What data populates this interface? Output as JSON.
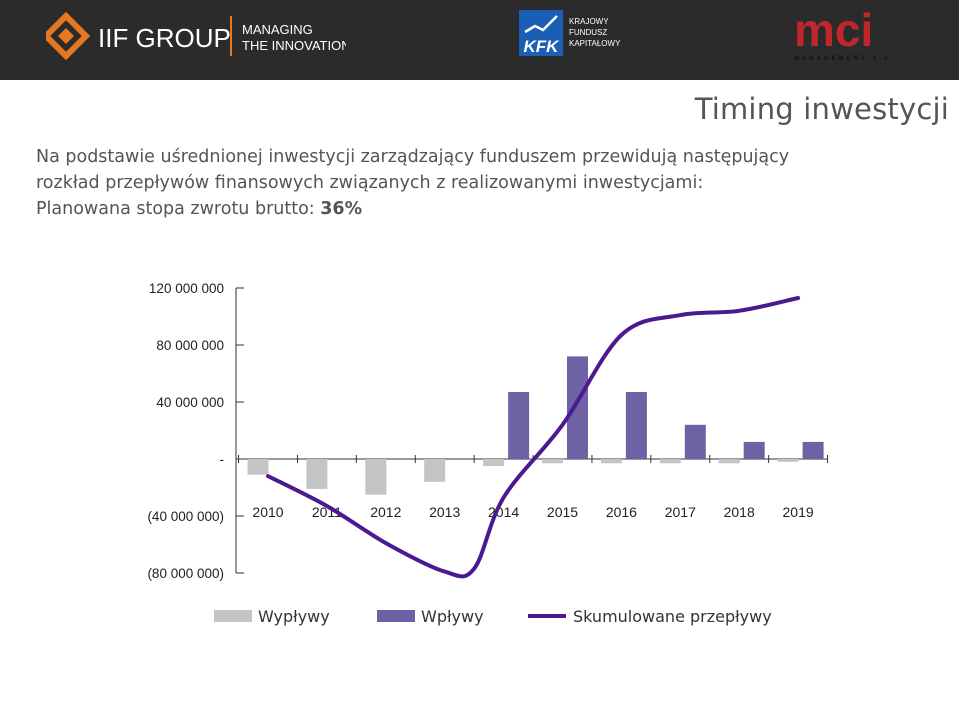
{
  "header": {
    "iif_group_name": "IIF GROUP",
    "iif_tagline_line1": "MANAGING",
    "iif_tagline_line2": "THE INNOVATION",
    "kfk_mark": "KFK",
    "kfk_name_line1": "KRAJOWY",
    "kfk_name_line2": "FUNDUSZ",
    "kfk_name_line3": "KAPITAŁOWY",
    "mci_mark": "mci",
    "mci_sub": "MANAGEMENT S.A."
  },
  "page_title": "Timing inwestycji",
  "intro": {
    "line1": "Na podstawie uśrednionej inwestycji zarządzający funduszem przewidują następujący",
    "line2": "rozkład przepływów finansowych związanych z realizowanymi inwestycjami:",
    "line3_prefix": "Planowana stopa zwrotu brutto: ",
    "line3_value": "36%"
  },
  "colors": {
    "topbar": "#2b2b2b",
    "outflow": "#c4c4c4",
    "inflow": "#6e62a4",
    "cumulative": "#4b1a91",
    "iif_orange": "#e87722",
    "kfk_blue": "#1a5fb4",
    "mci_red": "#c0272d"
  },
  "chart_data": {
    "type": "bar",
    "categories": [
      "2010",
      "2011",
      "2012",
      "2013",
      "2014",
      "2015",
      "2016",
      "2017",
      "2018",
      "2019"
    ],
    "series": [
      {
        "name": "Wypływy",
        "type": "bar",
        "values": [
          -11000000,
          -21000000,
          -25000000,
          -16000000,
          -5000000,
          -3000000,
          -3000000,
          -3000000,
          -3000000,
          -2000000
        ]
      },
      {
        "name": "Wpływy",
        "type": "bar",
        "values": [
          0,
          0,
          0,
          0,
          47000000,
          72000000,
          47000000,
          24000000,
          12000000,
          12000000
        ]
      },
      {
        "name": "Skumulowane przepływy",
        "type": "line",
        "x": [
          2010,
          2011,
          2012,
          2013,
          2013.5,
          2014,
          2015,
          2016,
          2017,
          2018,
          2019
        ],
        "values": [
          -12000000,
          -33000000,
          -59000000,
          -79000000,
          -77000000,
          -27000000,
          24000000,
          87000000,
          101000000,
          104000000,
          113000000
        ]
      }
    ],
    "y_ticks": [
      "120 000 000",
      "80 000 000",
      "40 000 000",
      "-",
      "(40 000 000)",
      "(80 000 000)"
    ],
    "y_tick_values": [
      120000000,
      80000000,
      40000000,
      0,
      -40000000,
      -80000000
    ],
    "ylim": [
      -80000000,
      120000000
    ],
    "grid": false,
    "legend_position": "bottom"
  }
}
